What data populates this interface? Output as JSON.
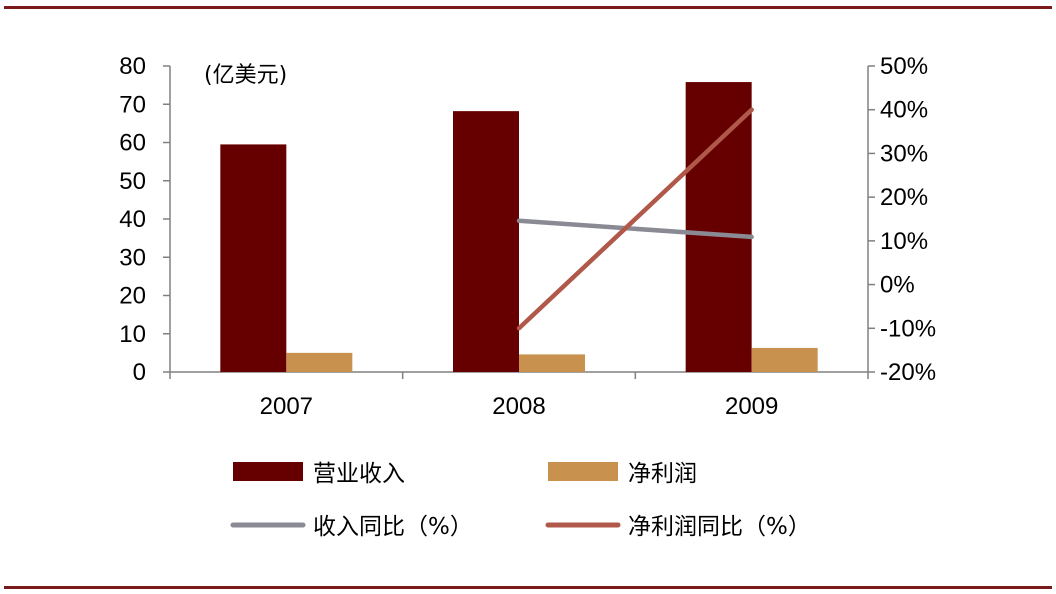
{
  "chart_data": {
    "type": "bar",
    "categories": [
      "2007",
      "2008",
      "2009"
    ],
    "unit_label": "(亿美元)",
    "y_left": {
      "min": 0,
      "max": 80,
      "ticks": [
        0,
        10,
        20,
        30,
        40,
        50,
        60,
        70,
        80
      ]
    },
    "y_right": {
      "min": -20,
      "max": 50,
      "ticks": [
        "-20%",
        "-10%",
        "0%",
        "10%",
        "20%",
        "30%",
        "40%",
        "50%"
      ],
      "tick_values": [
        -20,
        -10,
        0,
        10,
        20,
        30,
        40,
        50
      ]
    },
    "series": [
      {
        "name": "营业收入",
        "type": "bar",
        "axis": "left",
        "color": "#660000",
        "values": [
          59.5,
          68.2,
          75.8
        ]
      },
      {
        "name": "净利润",
        "type": "bar",
        "axis": "left",
        "color": "#C8914D",
        "values": [
          5.0,
          4.6,
          6.3
        ]
      },
      {
        "name": "收入同比（%）",
        "type": "line",
        "axis": "right",
        "color": "#8A8A94",
        "values": [
          null,
          14.6,
          10.9
        ]
      },
      {
        "name": "净利润同比（%）",
        "type": "line",
        "axis": "right",
        "color": "#B0584A",
        "values": [
          null,
          -10.0,
          40.0
        ]
      }
    ],
    "grid": false,
    "legend_position": "bottom"
  }
}
